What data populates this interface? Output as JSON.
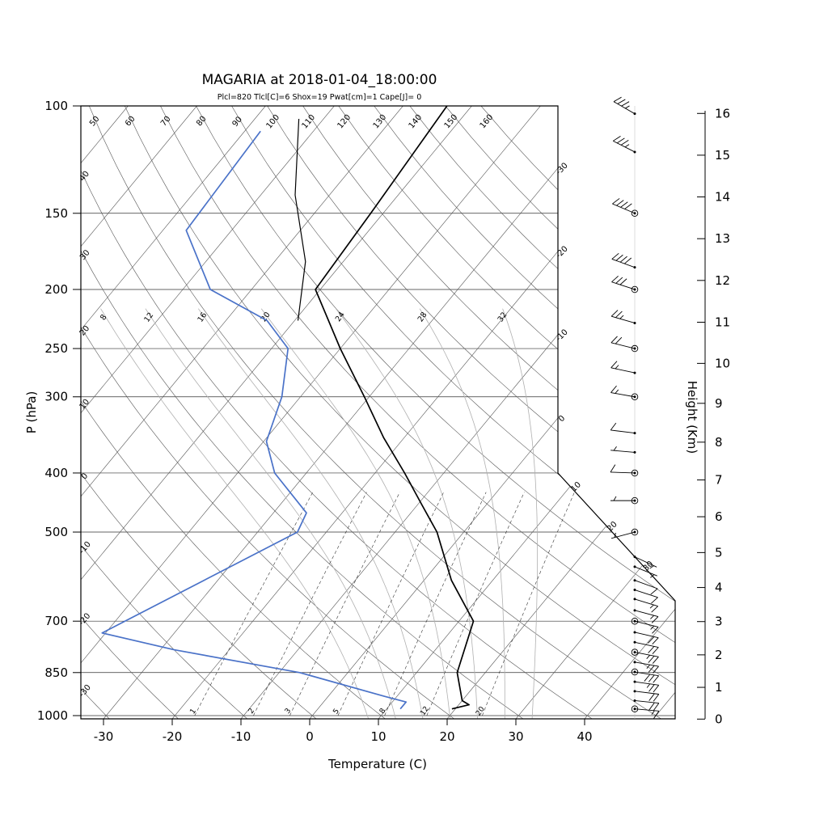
{
  "title": "MAGARIA at 2018-01-04_18:00:00",
  "subtitle": "Plcl=820 Tlcl[C]=6 Shox=19 Pwat[cm]=1 Cape[J]= 0",
  "colors": {
    "temperature": "#000000",
    "dewpoint": "#4a72c8",
    "parcel": "#000000",
    "subtitle": "#c0522a",
    "grid": "#555555",
    "moist_adiabat": "#b0b0b0"
  },
  "axes": {
    "pressure": {
      "label": "P (hPa)",
      "ticks": [
        100,
        150,
        200,
        250,
        300,
        400,
        500,
        700,
        850,
        1000
      ]
    },
    "temperature": {
      "label": "Temperature (C)",
      "ticks": [
        -30,
        -20,
        -10,
        0,
        10,
        20,
        30,
        40
      ]
    },
    "height": {
      "label": "Height (Km)",
      "ticks": [
        0,
        1,
        2,
        3,
        4,
        5,
        6,
        7,
        8,
        9,
        10,
        11,
        12,
        13,
        14,
        15,
        16
      ]
    }
  },
  "chart_data": {
    "type": "line",
    "variant": "skew-t-log-p sounding",
    "grid_on": true,
    "dry_adiabat_labels": [
      -30,
      -20,
      -10,
      0,
      10,
      20,
      30,
      40,
      50,
      60,
      70,
      80,
      90,
      100,
      110,
      120,
      130,
      140,
      150,
      160
    ],
    "isotherm_edge_labels": [
      -30,
      -20,
      -10,
      0,
      10,
      20,
      30
    ],
    "moist_adiabat_labels": [
      8,
      12,
      16,
      20,
      24,
      28,
      32
    ],
    "mixing_ratio_labels": [
      1,
      2,
      3,
      5,
      8,
      12,
      20
    ],
    "series": [
      {
        "name": "temperature",
        "units": "[p_hPa, T_C]",
        "color": "#000000",
        "points": [
          [
            975,
            19.5
          ],
          [
            960,
            21.5
          ],
          [
            945,
            20
          ],
          [
            850,
            15.9
          ],
          [
            700,
            12.1
          ],
          [
            600,
            4
          ],
          [
            500,
            -3.9
          ],
          [
            450,
            -9.5
          ],
          [
            400,
            -15.7
          ],
          [
            350,
            -23
          ],
          [
            300,
            -30.7
          ],
          [
            250,
            -40
          ],
          [
            200,
            -50.7
          ],
          [
            150,
            -51.8
          ],
          [
            100,
            -53.6
          ]
        ]
      },
      {
        "name": "dewpoint",
        "units": "[p_hPa, Td_C]",
        "color": "#4a72c8",
        "points": [
          [
            975,
            12
          ],
          [
            950,
            12
          ],
          [
            930,
            8.2
          ],
          [
            850,
            -7
          ],
          [
            780,
            -28
          ],
          [
            732,
            -40.5
          ],
          [
            600,
            -32
          ],
          [
            500,
            -24.2
          ],
          [
            465,
            -25.2
          ],
          [
            400,
            -34.6
          ],
          [
            355,
            -39.6
          ],
          [
            300,
            -42.7
          ],
          [
            250,
            -47.6
          ],
          [
            225,
            -54
          ],
          [
            200,
            -66
          ],
          [
            160,
            -76.6
          ],
          [
            110,
            -77.7
          ]
        ]
      },
      {
        "name": "parcel",
        "units": "[p_hPa, T_C]",
        "color": "#000000",
        "points": [
          [
            225,
            -49.5
          ],
          [
            180,
            -55.5
          ],
          [
            140,
            -65
          ],
          [
            105,
            -73.6
          ]
        ]
      }
    ],
    "wind_barbs_format": "[p_hPa, speed_kt, dir_deg, station_circle]",
    "wind_barbs": [
      [
        103,
        35,
        300,
        0
      ],
      [
        119,
        35,
        297,
        0
      ],
      [
        150,
        40,
        293,
        1
      ],
      [
        184,
        40,
        290,
        0
      ],
      [
        200,
        30,
        288,
        1
      ],
      [
        227,
        25,
        286,
        0
      ],
      [
        250,
        20,
        284,
        1
      ],
      [
        274,
        15,
        282,
        0
      ],
      [
        300,
        15,
        280,
        1
      ],
      [
        344,
        10,
        277,
        0
      ],
      [
        370,
        8,
        275,
        0
      ],
      [
        400,
        10,
        272,
        1
      ],
      [
        444,
        3,
        270,
        1
      ],
      [
        500,
        5,
        255,
        1
      ],
      [
        549,
        5,
        115,
        0
      ],
      [
        570,
        8,
        112,
        0
      ],
      [
        600,
        10,
        110,
        0
      ],
      [
        622,
        10,
        108,
        0
      ],
      [
        644,
        15,
        107,
        0
      ],
      [
        672,
        15,
        105,
        0
      ],
      [
        700,
        15,
        104,
        1
      ],
      [
        730,
        20,
        103,
        0
      ],
      [
        758,
        20,
        102,
        0
      ],
      [
        787,
        25,
        101,
        1
      ],
      [
        817,
        25,
        100,
        0
      ],
      [
        848,
        30,
        99,
        1
      ],
      [
        880,
        25,
        98,
        0
      ],
      [
        912,
        20,
        97,
        0
      ],
      [
        945,
        20,
        96,
        0
      ],
      [
        975,
        15,
        95,
        1
      ]
    ]
  }
}
